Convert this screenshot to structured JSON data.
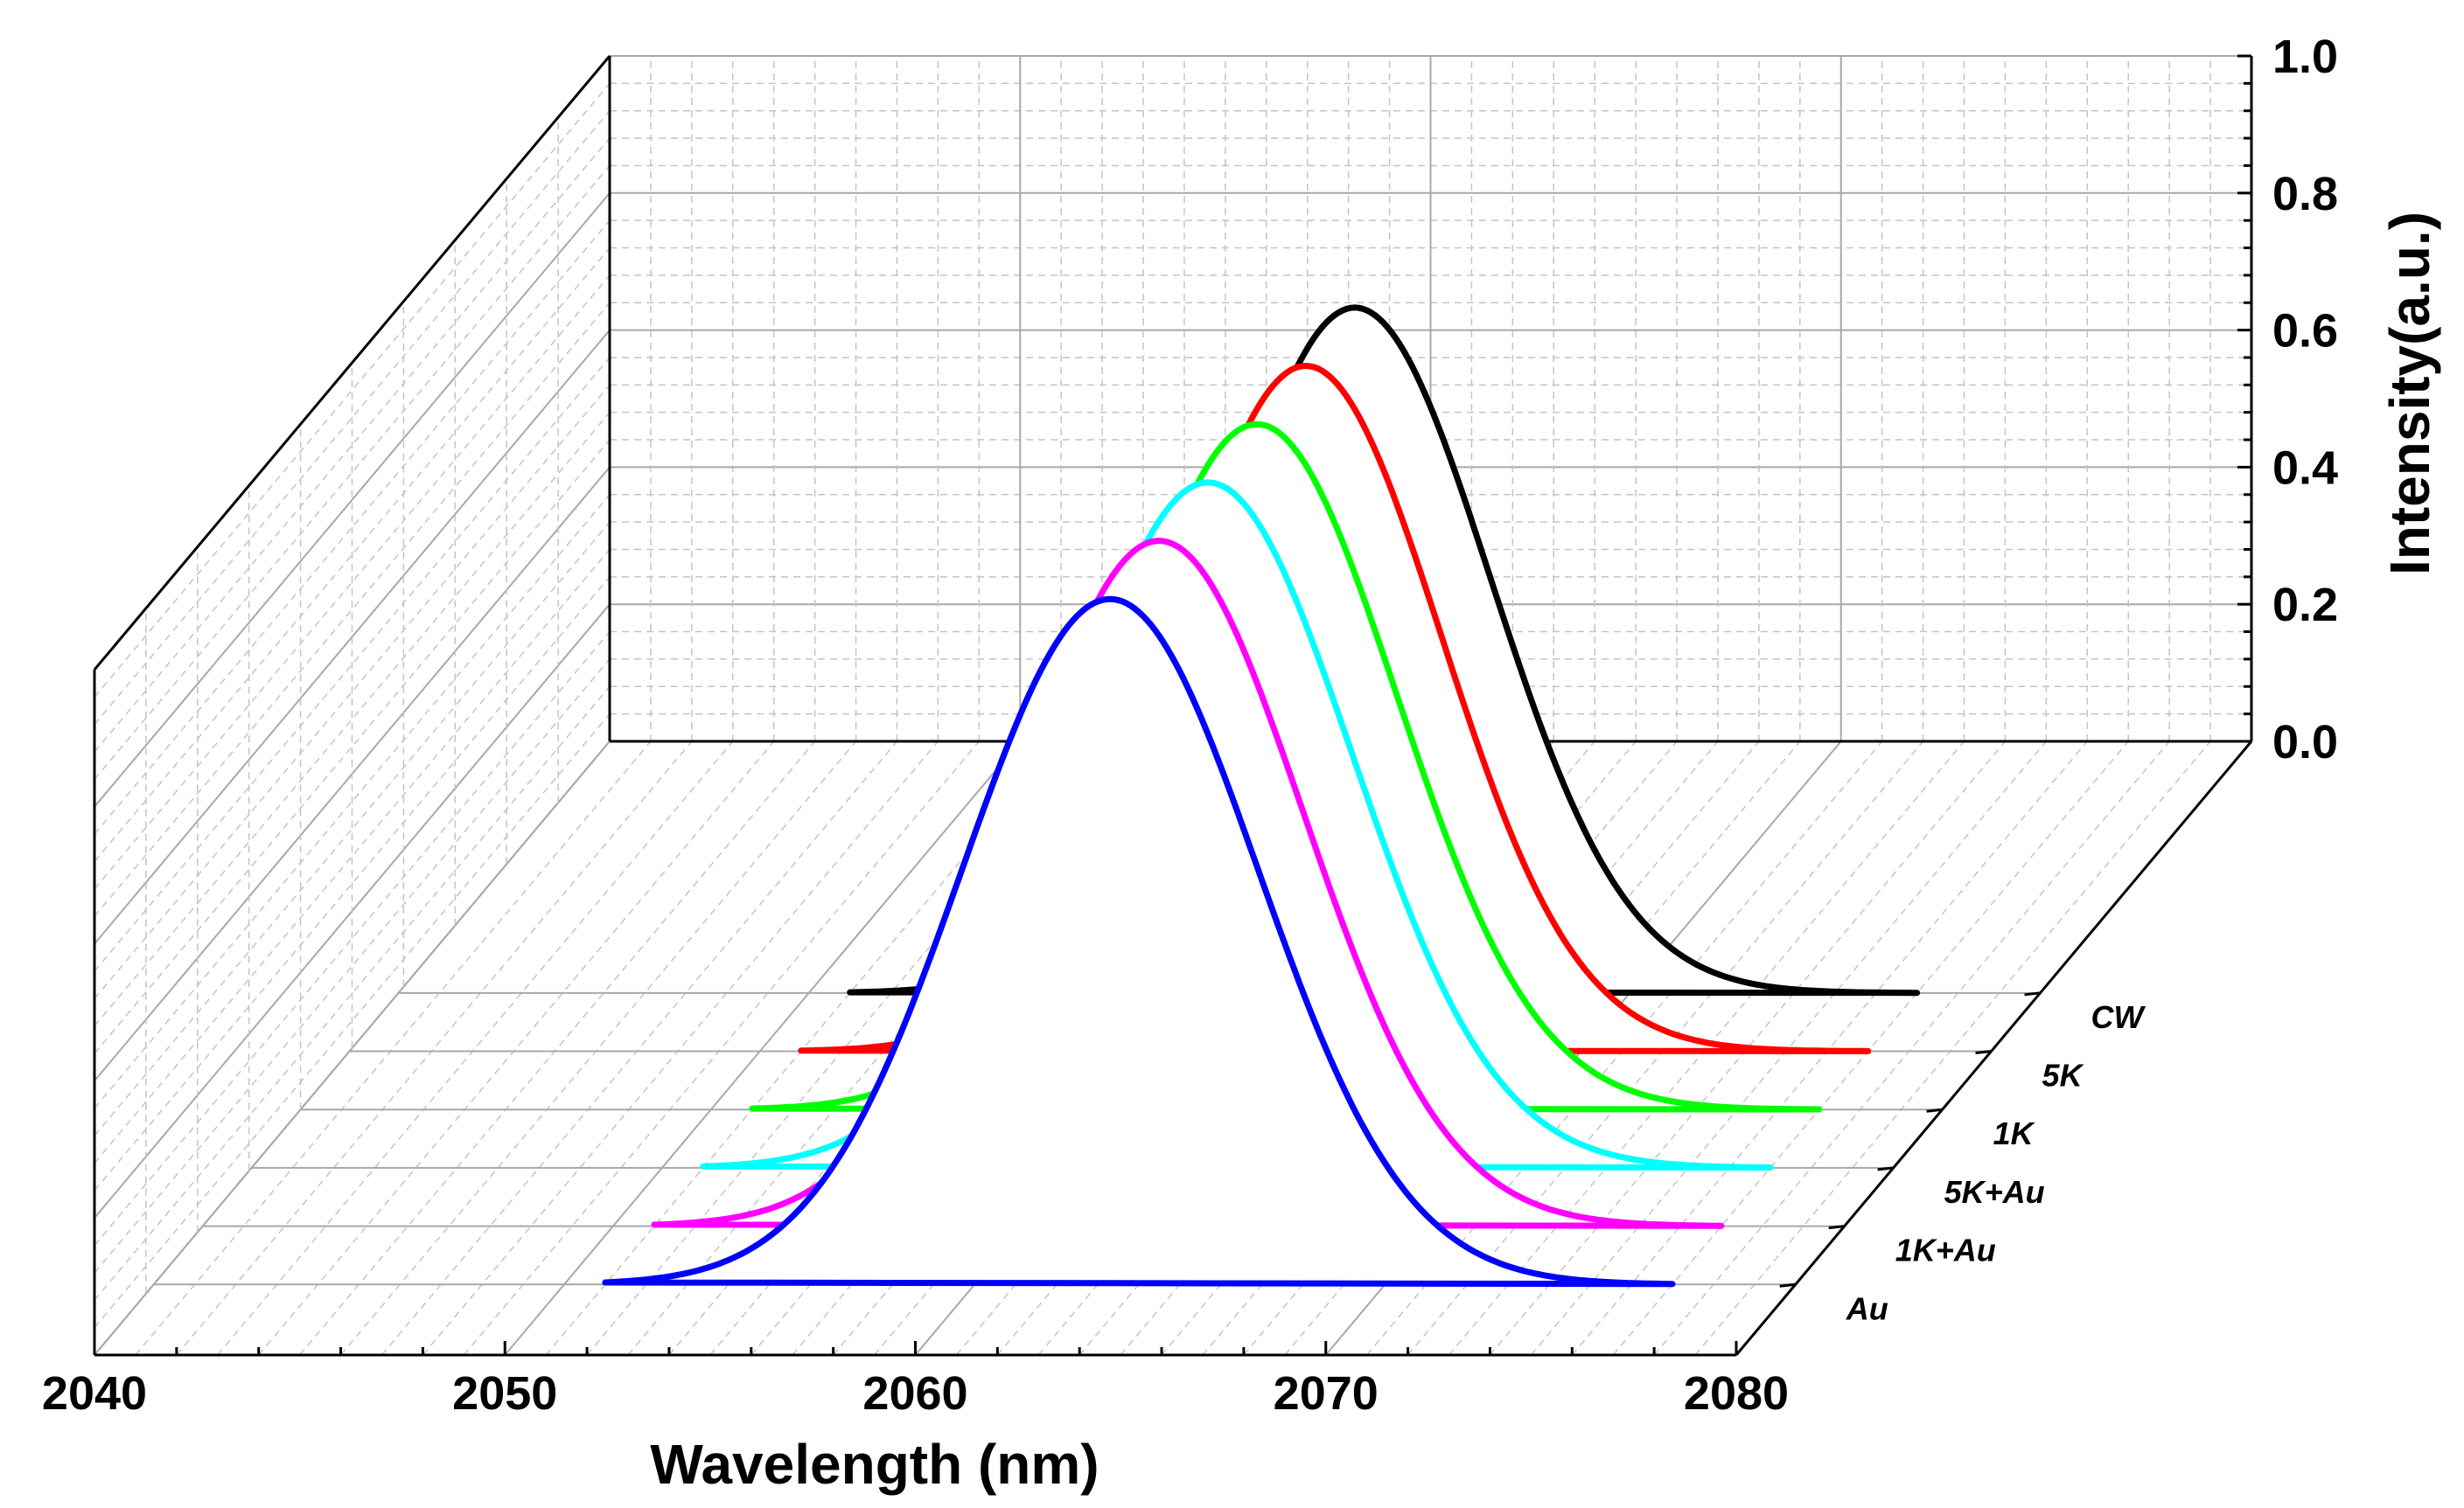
{
  "chart_data": {
    "type": "line",
    "subtype": "3d-waterfall",
    "title": "",
    "xlabel": "Wavelength (nm)",
    "zlabel": "Intensity(a.u.)",
    "xlim": [
      2040,
      2080
    ],
    "zlim": [
      0.0,
      1.0
    ],
    "x_ticks": [
      "2040",
      "2050",
      "2060",
      "2070",
      "2080"
    ],
    "z_ticks": [
      "0.0",
      "0.2",
      "0.4",
      "0.6",
      "0.8",
      "1.0"
    ],
    "grid": true,
    "series": [
      {
        "name": "Au",
        "color": "#0000ff",
        "x_start": 2051.0,
        "x_end": 2077.0,
        "center": 2063.3,
        "peak": 1.0,
        "width": 3.6
      },
      {
        "name": "1K+Au",
        "color": "#ff00ff",
        "x_start": 2051.0,
        "x_end": 2077.0,
        "center": 2063.3,
        "peak": 1.0,
        "width": 3.5
      },
      {
        "name": "5K+Au",
        "color": "#00ffff",
        "x_start": 2051.0,
        "x_end": 2077.0,
        "center": 2063.3,
        "peak": 1.0,
        "width": 3.5
      },
      {
        "name": "1K",
        "color": "#00ff00",
        "x_start": 2051.0,
        "x_end": 2077.0,
        "center": 2063.3,
        "peak": 1.0,
        "width": 3.4
      },
      {
        "name": "5K",
        "color": "#ff0000",
        "x_start": 2051.0,
        "x_end": 2077.0,
        "center": 2063.3,
        "peak": 1.0,
        "width": 3.3
      },
      {
        "name": "CW",
        "color": "#000000",
        "x_start": 2051.0,
        "x_end": 2077.0,
        "center": 2063.3,
        "peak": 1.0,
        "width": 3.3
      }
    ]
  }
}
